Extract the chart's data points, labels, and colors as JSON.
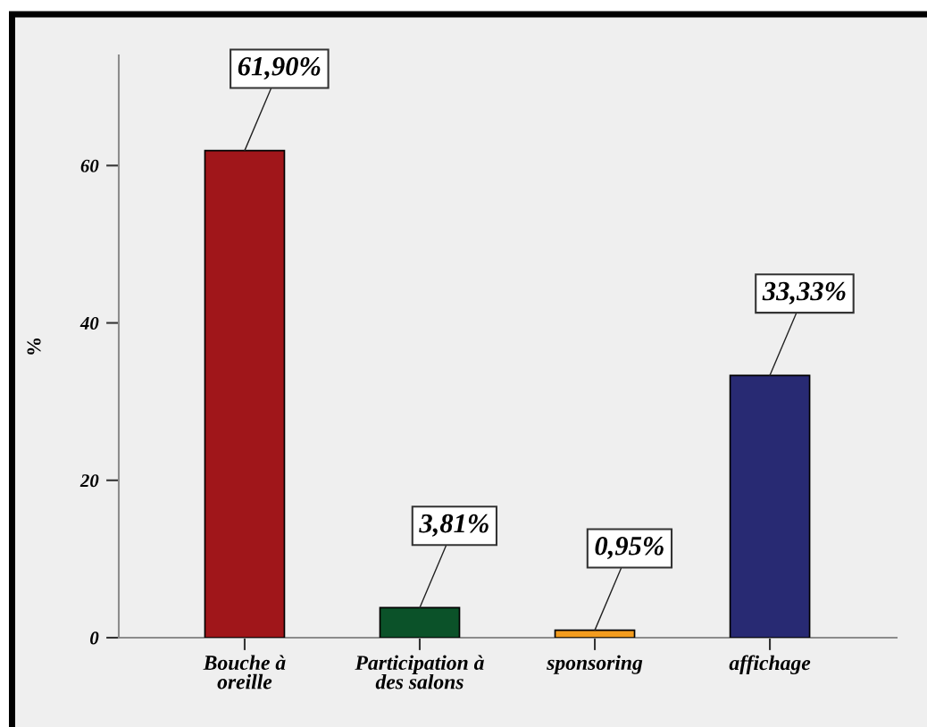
{
  "chart_data": {
    "type": "bar",
    "ylabel": "%",
    "categories": [
      "Bouche à\noreille",
      "Participation à\ndes salons",
      "sponsoring",
      "affichage"
    ],
    "values": [
      61.9,
      3.81,
      0.95,
      33.33
    ],
    "colors": [
      "#a0161a",
      "#0b5229",
      "#f39c1e",
      "#282a73"
    ],
    "value_labels": [
      "61,90%",
      "3,81%",
      "0,95%",
      "33,33%"
    ],
    "ylim": [
      0,
      74
    ],
    "yticks": [
      0,
      20,
      40,
      60
    ]
  }
}
